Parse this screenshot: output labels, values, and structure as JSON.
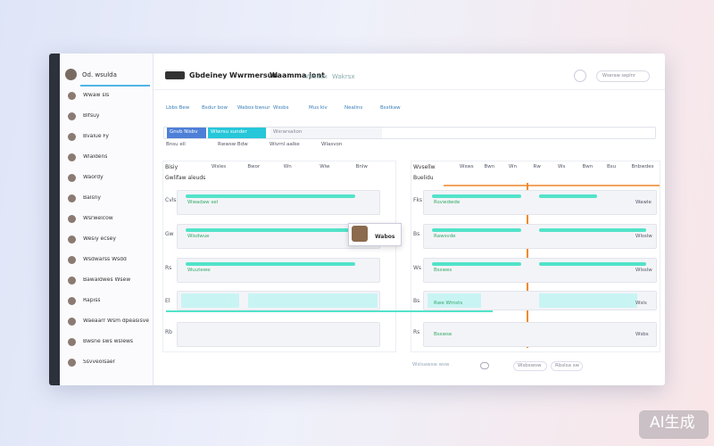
{
  "header": {
    "brand": "Od. wsulda",
    "tabs": [
      "Gbdeiney",
      "Wwrmersun",
      "Waamma jont"
    ],
    "links": [
      "Wisitsx",
      "Wakrsx"
    ],
    "menu": "Wseraw seplnr"
  },
  "sidebar": {
    "items": [
      "Wwaw sls",
      "Blfsuy",
      "Bvalue Fy",
      "Wlaldens",
      "Waordy",
      "Balsny",
      "Wsrwelcow",
      "Wesiy ecsey",
      "Wsdwarss Wsdd",
      "Bawaldwes Wsew",
      "Rapiss",
      "Waeaarr Wsm dpeasisve",
      "Bwsne sws wslews",
      "Ssvveolsaer"
    ]
  },
  "filters": [
    "Lbbs Bew",
    "Bsdur bow",
    "Wabos bwsur",
    "Wssbs",
    "Mus kiv",
    "Nealins",
    "Bsstkaw"
  ],
  "toolbar": {
    "button": "Gnvb Nisbv",
    "active": "Wlwrsu sunder",
    "input": "Wsrarsalion",
    "tags": [
      "Bnsu ell",
      "Rwwsw Bdw",
      "Wivrnl aalke",
      "Wlasvon"
    ]
  },
  "left_panel": {
    "title": "Bisiy",
    "columns": [
      "Wsles",
      "Bwor",
      "Wn",
      "Wiw",
      "Bnlw"
    ],
    "subtitle": "Gwlifaw aleuds",
    "row_labels": [
      "Cvls",
      "Gw",
      "Rs",
      "El",
      "Rb"
    ],
    "rows": [
      "Wwadaw sel",
      "Wisdwue",
      "Wuutewe"
    ],
    "popup": "Wabos"
  },
  "right_panel": {
    "title": "Wvsellw",
    "columns": [
      "Wsws",
      "Bwn",
      "Wn",
      "Rw",
      "Ws",
      "Bwn",
      "Bsu",
      "Bnbwdes"
    ],
    "subtitle": "Buelidu",
    "row_labels": [
      "Fks",
      "Bs",
      "Ws",
      "Bs",
      "Rs"
    ],
    "rows": [
      "Rsvwdwde",
      "Rawsvde",
      "Bsswes",
      "Rwe Wrnsts",
      "Bsswse"
    ],
    "side": [
      "Wawle",
      "Wlsslw",
      "Wlsslw",
      "Wsls",
      "Wsbs"
    ]
  },
  "footer": {
    "text": "Wslsawsw wsw",
    "buttons": [
      "Wsbswsw",
      "Rbslsa sw"
    ]
  },
  "watermark": "AI生成"
}
